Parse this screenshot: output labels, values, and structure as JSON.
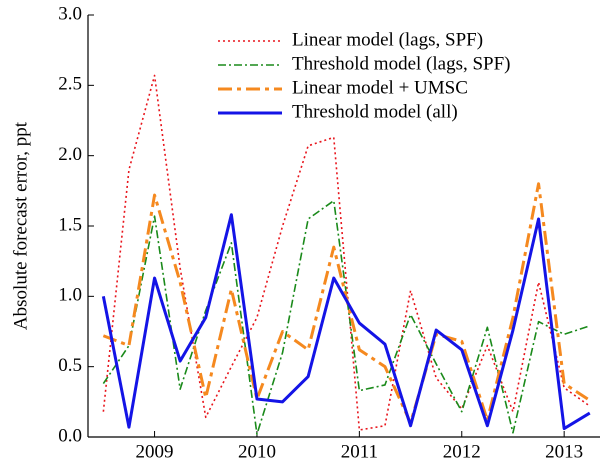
{
  "chart_data": {
    "type": "line",
    "y_label": "Absolute forecast error, ppt",
    "x": [
      2008.5,
      2008.75,
      2009.0,
      2009.25,
      2009.5,
      2009.75,
      2010.0,
      2010.25,
      2010.5,
      2010.75,
      2011.0,
      2011.25,
      2011.5,
      2011.75,
      2012.0,
      2012.25,
      2012.5,
      2012.75,
      2013.0,
      2013.25
    ],
    "xlim": [
      2008.35,
      2013.35
    ],
    "xticks": [
      2009,
      2010,
      2011,
      2012,
      2013
    ],
    "ylim": [
      0,
      3
    ],
    "yticks": [
      {
        "value": 0,
        "label": "0.0"
      },
      {
        "value": 0.5,
        "label": "0.5"
      },
      {
        "value": 1,
        "label": "1.0"
      },
      {
        "value": 1.5,
        "label": "1.5"
      },
      {
        "value": 2,
        "label": "2.0"
      },
      {
        "value": 2.5,
        "label": "2.5"
      },
      {
        "value": 3,
        "label": "3.0"
      }
    ],
    "legend": "upper center",
    "series": [
      {
        "name": "Linear model (lags, SPF)",
        "color": "#e8141b",
        "dash": "2,3",
        "width": 1.6,
        "values": [
          0.18,
          1.9,
          2.57,
          1.2,
          0.14,
          0.5,
          0.85,
          1.5,
          2.07,
          2.13,
          0.05,
          0.08,
          1.04,
          0.42,
          0.2,
          0.65,
          0.18,
          1.1,
          0.35,
          0.22
        ]
      },
      {
        "name": "Threshold model (lags, SPF)",
        "color": "#1a8a1a",
        "dash": "8,3,2,3",
        "width": 1.6,
        "values": [
          0.38,
          0.65,
          1.57,
          0.34,
          0.9,
          1.38,
          0.02,
          0.6,
          1.55,
          1.68,
          0.33,
          0.37,
          0.87,
          0.52,
          0.18,
          0.78,
          0.03,
          0.82,
          0.73,
          0.79
        ]
      },
      {
        "name": "Linear model + UMSC",
        "color": "#f5891f",
        "dash": "14,5,4,5",
        "width": 3,
        "values": [
          0.72,
          0.65,
          1.72,
          1.1,
          0.28,
          1.05,
          0.27,
          0.75,
          0.62,
          1.35,
          0.62,
          0.5,
          0.1,
          0.73,
          0.68,
          0.12,
          0.85,
          1.8,
          0.38,
          0.26
        ]
      },
      {
        "name": "Threshold model (all)",
        "color": "#1414e6",
        "dash": "",
        "width": 3,
        "values": [
          1.0,
          0.07,
          1.13,
          0.54,
          0.85,
          1.58,
          0.27,
          0.25,
          0.43,
          1.13,
          0.81,
          0.66,
          0.08,
          0.76,
          0.62,
          0.08,
          0.76,
          1.55,
          0.06,
          0.17
        ]
      }
    ]
  }
}
